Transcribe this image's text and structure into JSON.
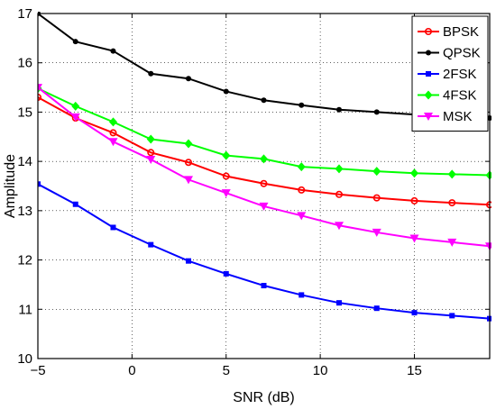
{
  "chart_data": {
    "type": "line",
    "xlabel": "SNR (dB)",
    "ylabel": "Amplitude",
    "xlim": [
      -5,
      19
    ],
    "ylim": [
      10,
      17
    ],
    "xticks": [
      -5,
      0,
      5,
      10,
      15
    ],
    "yticks": [
      10,
      11,
      12,
      13,
      14,
      15,
      16,
      17
    ],
    "grid": true,
    "legend_position": "top-right",
    "x": [
      -5,
      -3,
      -1,
      1,
      3,
      5,
      7,
      9,
      11,
      13,
      15,
      17,
      19
    ],
    "series": [
      {
        "name": "BPSK",
        "color": "#ff0000",
        "marker": "circle",
        "values": [
          15.3,
          14.88,
          14.58,
          14.18,
          13.98,
          13.7,
          13.55,
          13.42,
          13.33,
          13.26,
          13.2,
          13.16,
          13.12
        ]
      },
      {
        "name": "QPSK",
        "color": "#000000",
        "marker": "dot",
        "values": [
          17.0,
          16.43,
          16.24,
          15.78,
          15.68,
          15.42,
          15.24,
          15.14,
          15.05,
          15.0,
          14.95,
          14.91,
          14.88
        ]
      },
      {
        "name": "2FSK",
        "color": "#0000ff",
        "marker": "square",
        "values": [
          13.54,
          13.13,
          12.66,
          12.31,
          11.98,
          11.72,
          11.48,
          11.29,
          11.13,
          11.02,
          10.93,
          10.87,
          10.81
        ]
      },
      {
        "name": "4FSK",
        "color": "#00ff00",
        "marker": "diamond",
        "values": [
          15.48,
          15.12,
          14.8,
          14.45,
          14.36,
          14.12,
          14.05,
          13.89,
          13.85,
          13.8,
          13.76,
          13.74,
          13.72
        ]
      },
      {
        "name": "MSK",
        "color": "#ff00ff",
        "marker": "triangle-down",
        "values": [
          15.5,
          14.9,
          14.4,
          14.04,
          13.63,
          13.36,
          13.09,
          12.9,
          12.7,
          12.56,
          12.44,
          12.36,
          12.28
        ]
      }
    ]
  }
}
